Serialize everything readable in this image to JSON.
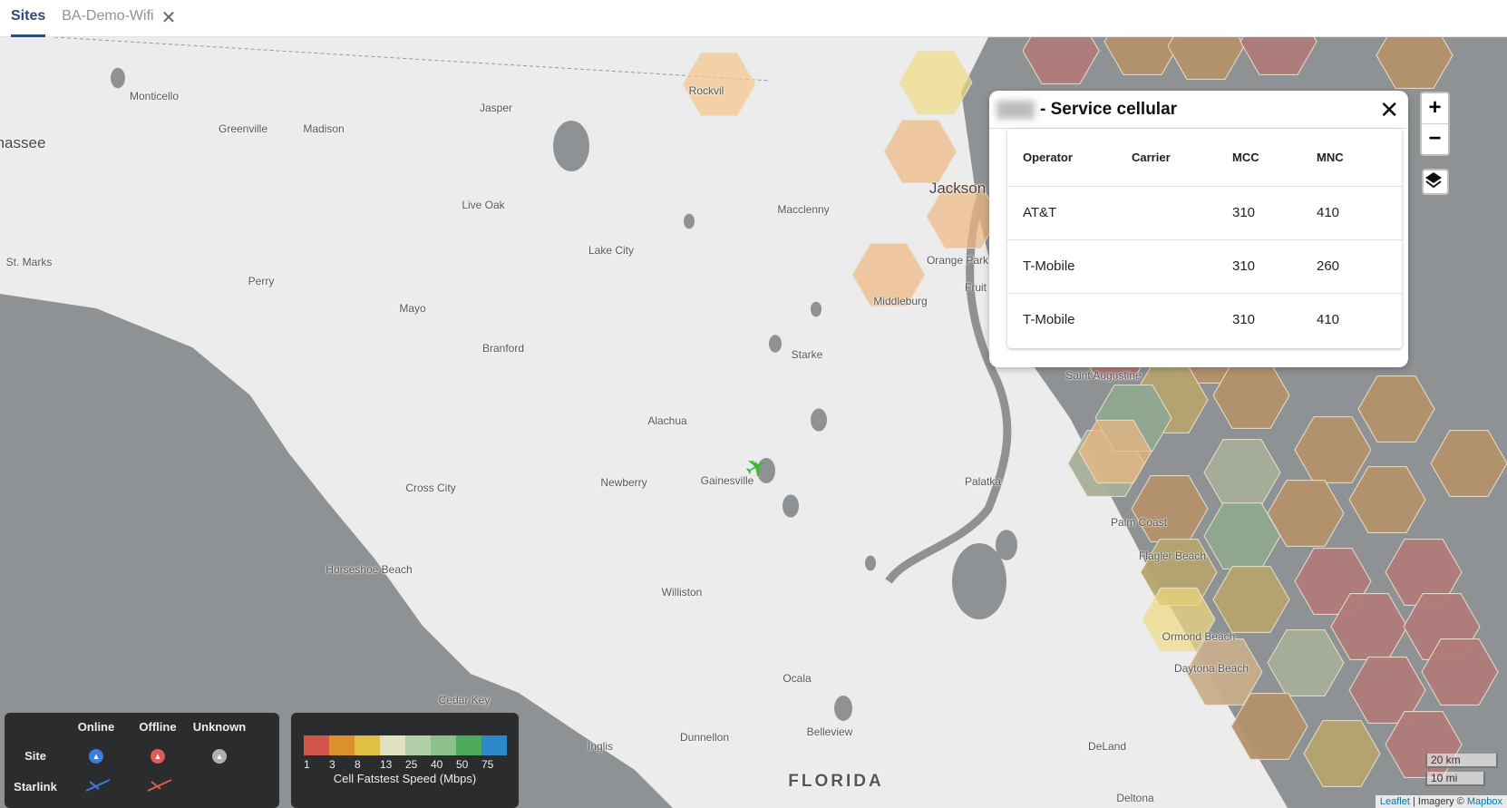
{
  "tabs": [
    {
      "label": "Sites",
      "active": true
    },
    {
      "label": "BA-Demo-Wifi",
      "active": false,
      "closable": true
    }
  ],
  "popup": {
    "title": "- Service cellular",
    "close_icon": "close-icon",
    "columns": [
      "Operator",
      "Carrier",
      "MCC",
      "MNC"
    ],
    "rows": [
      [
        "AT&T",
        "",
        "310",
        "410"
      ],
      [
        "T-Mobile",
        "",
        "310",
        "260"
      ],
      [
        "T-Mobile",
        "",
        "310",
        "410"
      ]
    ]
  },
  "map_controls": {
    "zoom_in": "+",
    "zoom_out": "−",
    "layers_icon": "layers-icon"
  },
  "map": {
    "cities": [
      "hassee",
      "Monticello",
      "Greenville",
      "Madison",
      "Jasper",
      "Rockvil",
      "Live Oak",
      "Macclenny",
      "Lake City",
      "Jackson",
      "Orange Park",
      "Fruit",
      "Middleburg",
      "St. Marks",
      "Perry",
      "Mayo",
      "Branford",
      "Starke",
      "Saint Augustine",
      "Alachua",
      "Newberry",
      "Gainesville",
      "Palatka",
      "Cross City",
      "Palm Coast",
      "Flagler Beach",
      "Horseshoe Beach",
      "Williston",
      "Ormond Beach",
      "Daytona Beach",
      "Ocala",
      "Cedar Key",
      "Belleview",
      "Dunnellon",
      "Inglis",
      "DeLand",
      "Deltona",
      "FLORIDA"
    ],
    "marker": {
      "type": "airplane-icon",
      "color": "#3cb832"
    }
  },
  "status_legend": {
    "columns": [
      "Online",
      "Offline",
      "Unknown"
    ],
    "rows": [
      "Site",
      "Starlink"
    ],
    "colors": {
      "online": "#3b7de0",
      "offline": "#e05a5a",
      "unknown": "#b0b0b0"
    }
  },
  "speed_legend": {
    "caption": "Cell Fatstest Speed (Mbps)",
    "ticks": [
      "1",
      "3",
      "8",
      "13",
      "25",
      "40",
      "50",
      "75"
    ],
    "colors": [
      "#d05548",
      "#db902c",
      "#dfc043",
      "#dfe1c1",
      "#b1cfa9",
      "#8cc18b",
      "#4fa95a",
      "#2b88c9"
    ]
  },
  "scale": {
    "km": "20 km",
    "mi": "10 mi"
  },
  "attribution": {
    "leaflet": "Leaflet",
    "sep": " | Imagery © ",
    "mapbox": "Mapbox"
  }
}
